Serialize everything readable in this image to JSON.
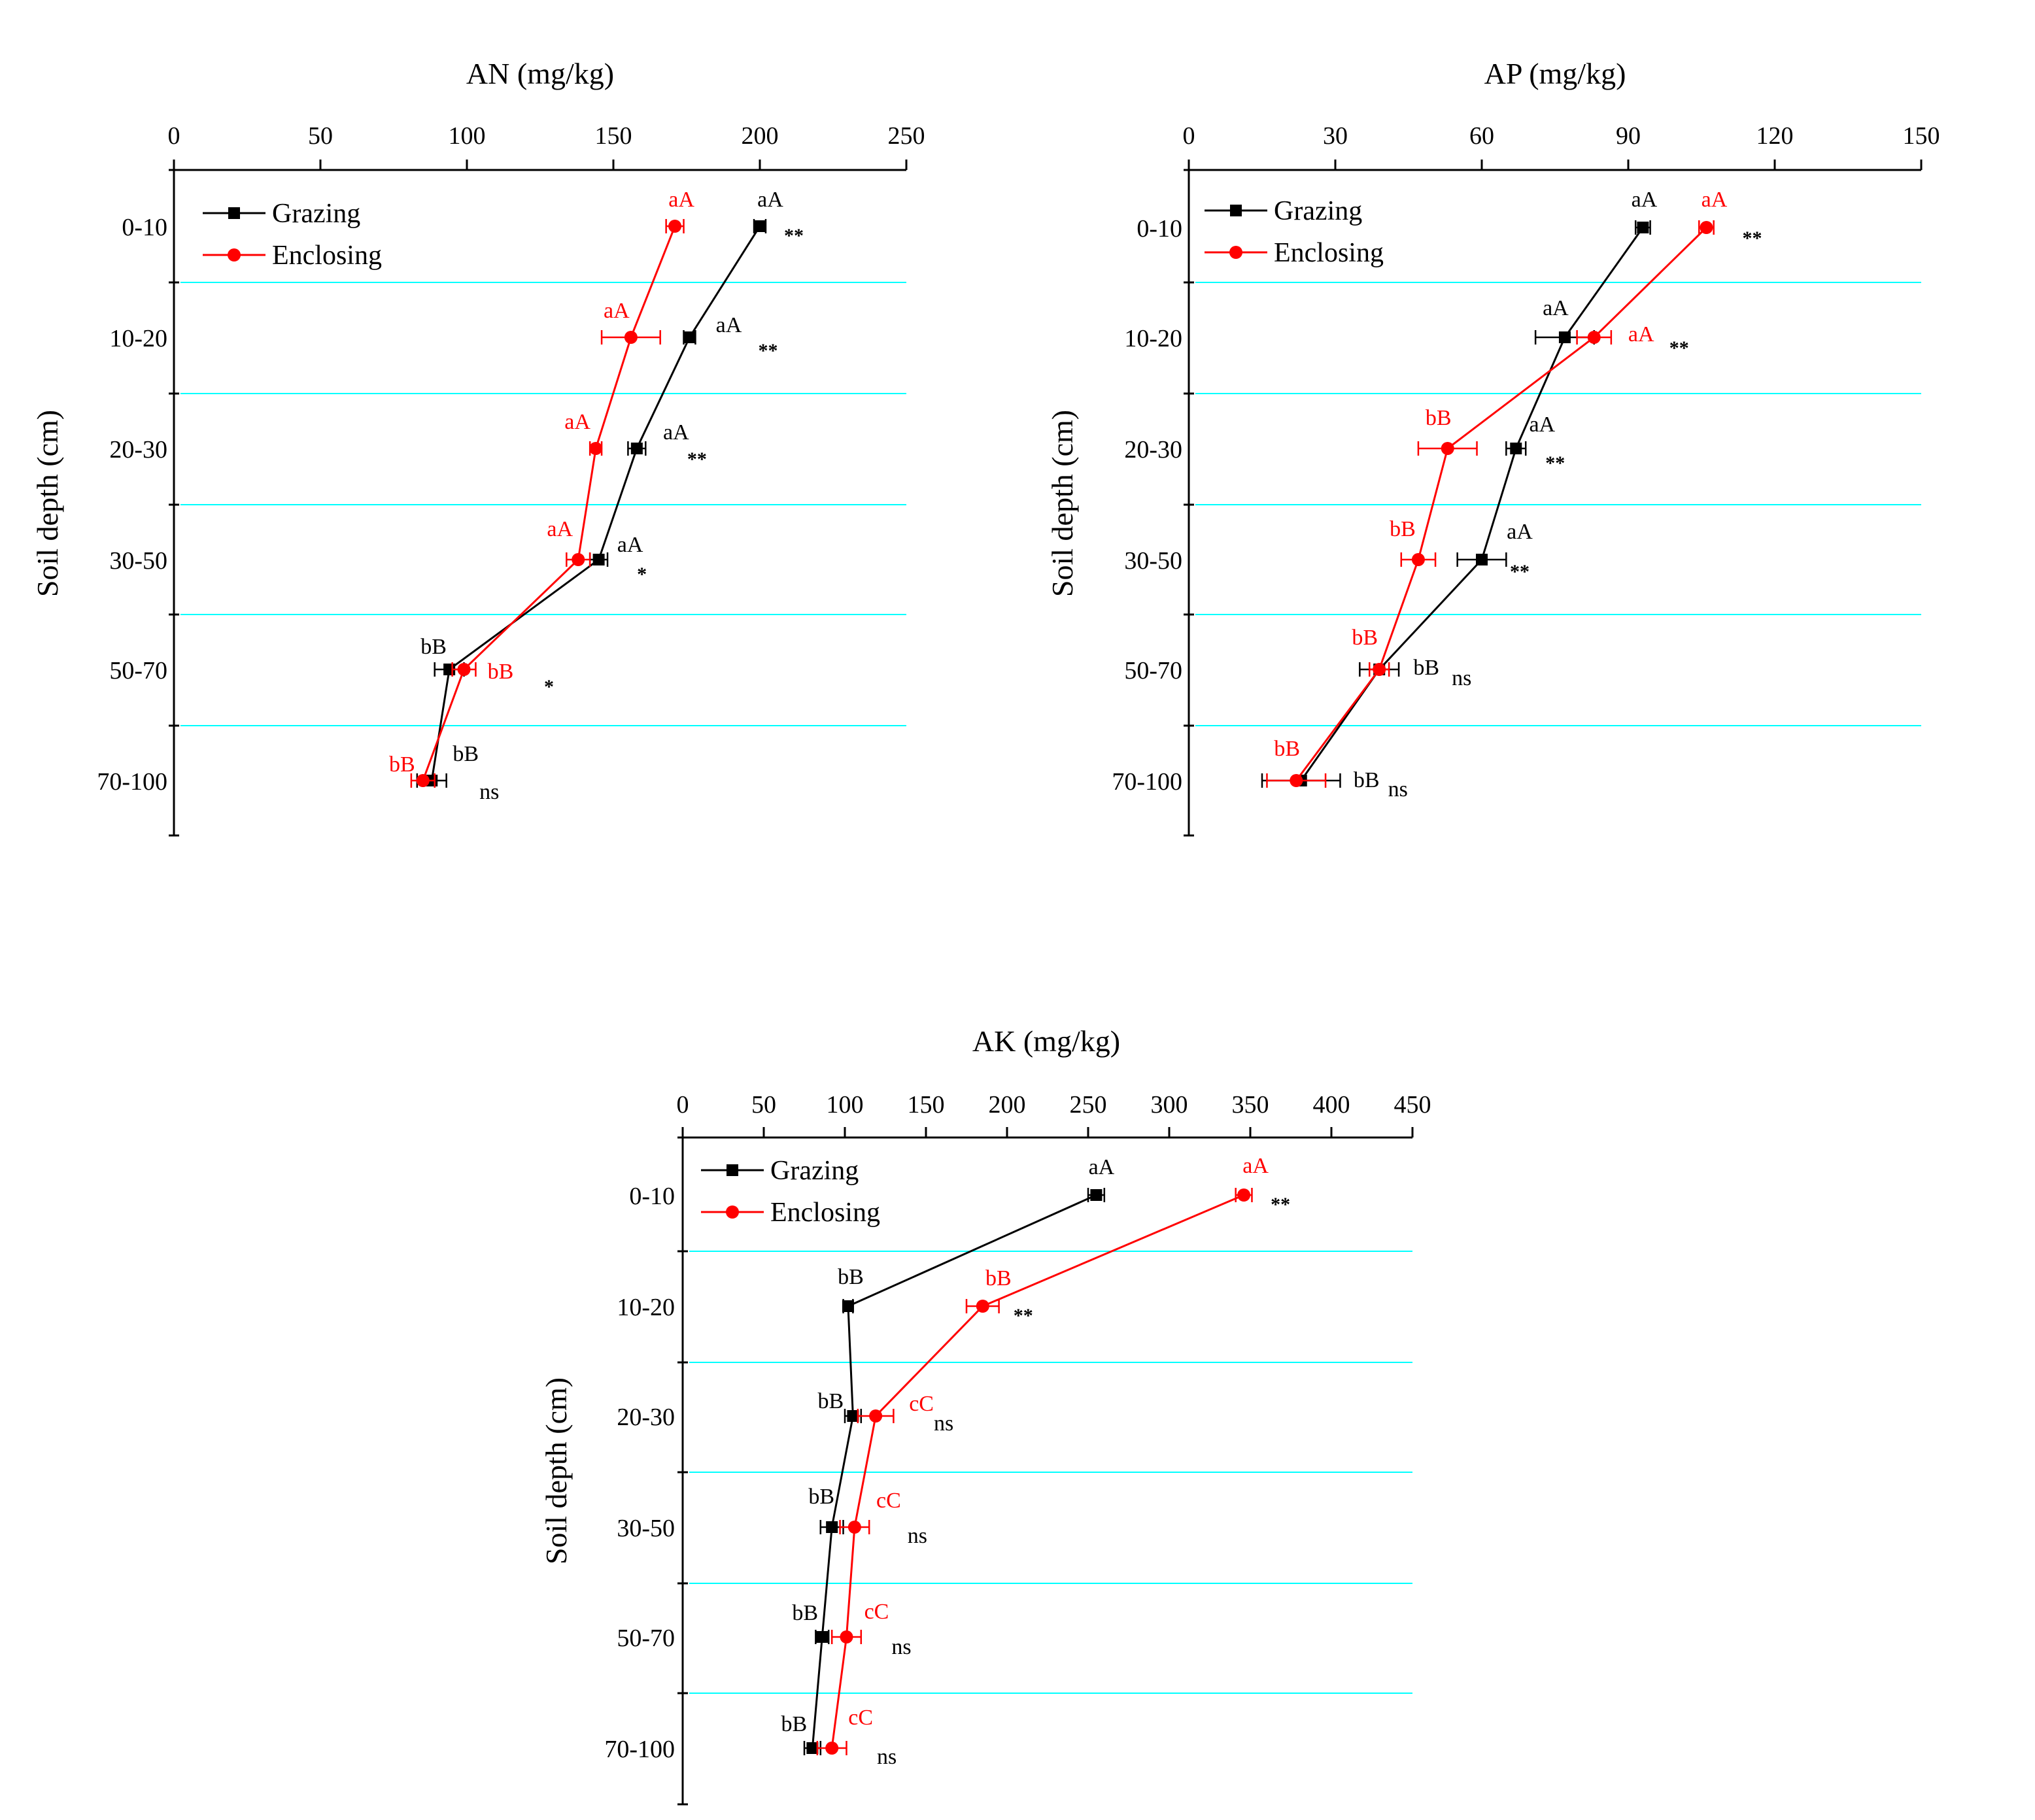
{
  "colors": {
    "grazing": "#000000",
    "enclosing": "#ff0000",
    "grid": "#00ffff",
    "axis": "#000000"
  },
  "chart_data": [
    {
      "id": "an",
      "type": "line",
      "orientation": "horizontal-profile",
      "title": "AN (mg/kg)",
      "xlabel": "AN (mg/kg)",
      "ylabel": "Soil depth (cm)",
      "categories": [
        "0-10",
        "10-20",
        "20-30",
        "30-50",
        "50-70",
        "70-100"
      ],
      "xlim": [
        0,
        250
      ],
      "xticks": [
        "0",
        "50",
        "100",
        "150",
        "200",
        "250"
      ],
      "legend_location": "top-left",
      "series": [
        {
          "name": "Grazing",
          "marker": "square",
          "color": "#000000",
          "values": [
            200,
            176,
            158,
            145,
            94,
            88
          ],
          "errors": [
            2,
            2,
            3,
            3,
            5,
            5
          ],
          "labels": [
            "aA",
            "aA",
            "aA",
            "aA",
            "bB",
            "bB"
          ]
        },
        {
          "name": "Enclosing",
          "marker": "circle",
          "color": "#ff0000",
          "values": [
            171,
            156,
            144,
            138,
            99,
            85
          ],
          "errors": [
            3,
            10,
            2,
            4,
            4,
            4
          ],
          "labels": [
            "aA",
            "aA",
            "aA",
            "aA",
            "bB",
            "bB"
          ]
        }
      ],
      "significance": [
        "**",
        "**",
        "**",
        "*",
        "*",
        "ns"
      ]
    },
    {
      "id": "ap",
      "type": "line",
      "orientation": "horizontal-profile",
      "title": "AP (mg/kg)",
      "xlabel": "AP (mg/kg)",
      "ylabel": "Soil depth (cm)",
      "categories": [
        "0-10",
        "10-20",
        "20-30",
        "30-50",
        "50-70",
        "70-100"
      ],
      "xlim": [
        0,
        150
      ],
      "xticks": [
        "0",
        "30",
        "60",
        "90",
        "120",
        "150"
      ],
      "legend_location": "top-left",
      "series": [
        {
          "name": "Grazing",
          "marker": "square",
          "color": "#000000",
          "values": [
            93,
            77,
            67,
            60,
            39,
            23
          ],
          "errors": [
            1.5,
            6,
            2,
            5,
            4,
            8
          ],
          "labels": [
            "aA",
            "aA",
            "aA",
            "aA",
            "bB",
            "bB"
          ]
        },
        {
          "name": "Enclosing",
          "marker": "circle",
          "color": "#ff0000",
          "values": [
            106,
            83,
            53,
            47,
            39,
            22
          ],
          "errors": [
            1.5,
            3.5,
            6,
            3.5,
            2,
            6
          ],
          "labels": [
            "aA",
            "aA",
            "bB",
            "bB",
            "bB",
            "bB"
          ]
        }
      ],
      "significance": [
        "**",
        "**",
        "**",
        "**",
        "ns",
        "ns"
      ]
    },
    {
      "id": "ak",
      "type": "line",
      "orientation": "horizontal-profile",
      "title": "AK (mg/kg)",
      "xlabel": "AK (mg/kg)",
      "ylabel": "Soil depth (cm)",
      "categories": [
        "0-10",
        "10-20",
        "20-30",
        "30-50",
        "50-70",
        "70-100"
      ],
      "xlim": [
        0,
        450
      ],
      "xticks": [
        "0",
        "50",
        "100",
        "150",
        "200",
        "250",
        "300",
        "350",
        "400",
        "450"
      ],
      "legend_location": "top-left",
      "series": [
        {
          "name": "Grazing",
          "marker": "square",
          "color": "#000000",
          "values": [
            255,
            102,
            105,
            92,
            86,
            80
          ],
          "errors": [
            5,
            3,
            5,
            7,
            4,
            5
          ],
          "labels": [
            "aA",
            "bB",
            "bB",
            "bB",
            "bB",
            "bB"
          ]
        },
        {
          "name": "Enclosing",
          "marker": "circle",
          "color": "#ff0000",
          "values": [
            346,
            185,
            119,
            106,
            101,
            92
          ],
          "errors": [
            5,
            10,
            11,
            9,
            9,
            9
          ],
          "labels": [
            "aA",
            "bB",
            "cC",
            "cC",
            "cC",
            "cC"
          ]
        }
      ],
      "significance": [
        "**",
        "**",
        "ns",
        "ns",
        "ns",
        "ns"
      ]
    }
  ]
}
